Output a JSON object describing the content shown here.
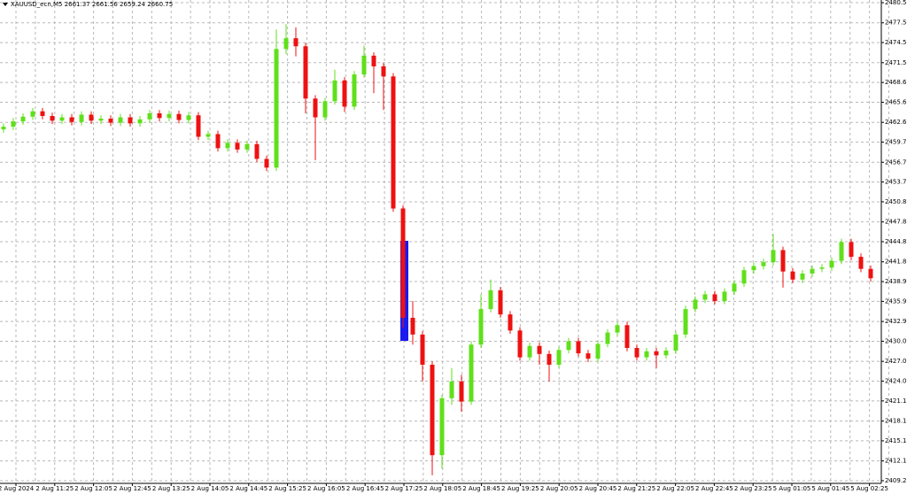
{
  "chart_data": {
    "type": "candlestick",
    "title": "XAUUSD_ecn,M5  2661.37 2661.56 2659.24 2660.75",
    "up_color": "#5fe01a",
    "down_color": "#ee1111",
    "grid": true,
    "ylim": [
      2408.8,
      2480.9
    ],
    "yticks": [
      {
        "value": 2480.5,
        "label": "2480.50"
      },
      {
        "value": 2477.5,
        "label": "2477.50"
      },
      {
        "value": 2474.55,
        "label": "2474.55"
      },
      {
        "value": 2471.55,
        "label": "2471.55"
      },
      {
        "value": 2468.6,
        "label": "2468.60"
      },
      {
        "value": 2465.65,
        "label": "2465.65"
      },
      {
        "value": 2462.65,
        "label": "2462.65"
      },
      {
        "value": 2459.7,
        "label": "2459.70"
      },
      {
        "value": 2456.7,
        "label": "2456.70"
      },
      {
        "value": 2453.75,
        "label": "2453.75"
      },
      {
        "value": 2450.8,
        "label": "2450.80"
      },
      {
        "value": 2447.8,
        "label": "2447.80"
      },
      {
        "value": 2444.85,
        "label": "2444.85"
      },
      {
        "value": 2441.85,
        "label": "2441.85"
      },
      {
        "value": 2438.9,
        "label": "2438.90"
      },
      {
        "value": 2435.95,
        "label": "2435.95"
      },
      {
        "value": 2432.95,
        "label": "2432.95"
      },
      {
        "value": 2430,
        "label": "2430.00"
      },
      {
        "value": 2427,
        "label": "2427.00"
      },
      {
        "value": 2424.05,
        "label": "2424.05"
      },
      {
        "value": 2421.1,
        "label": "2421.10"
      },
      {
        "value": 2418.1,
        "label": "2418.10"
      },
      {
        "value": 2415.15,
        "label": "2415.15"
      },
      {
        "value": 2412.15,
        "label": "2412.15"
      },
      {
        "value": 2409.2,
        "label": "2409.20"
      }
    ],
    "x_labels": [
      "2 Aug 2024",
      "2 Aug 11:25",
      "2 Aug 12:05",
      "2 Aug 12:45",
      "2 Aug 13:25",
      "2 Aug 14:05",
      "2 Aug 14:45",
      "2 Aug 15:25",
      "2 Aug 16:05",
      "2 Aug 16:45",
      "2 Aug 17:25",
      "2 Aug 18:05",
      "2 Aug 18:45",
      "2 Aug 19:25",
      "2 Aug 20:05",
      "2 Aug 20:45",
      "2 Aug 21:25",
      "2 Aug 22:05",
      "2 Aug 22:45",
      "2 Aug 23:25",
      "5 Aug 01:05",
      "5 Aug 01:45",
      "5 Aug 02:25"
    ],
    "open": [
      2461.6,
      2462.0,
      2462.8,
      2463.5,
      2464.3,
      2463.6,
      2462.9,
      2463.4,
      2462.7,
      2463.8,
      2462.9,
      2463.2,
      2462.6,
      2463.4,
      2462.5,
      2463.1,
      2464.0,
      2463.3,
      2463.9,
      2463.0,
      2463.7,
      2460.5,
      2460.9,
      2458.8,
      2459.6,
      2458.6,
      2459.4,
      2457.2,
      2455.9,
      2473.6,
      2475.2,
      2474.0,
      2466.2,
      2463.4,
      2465.8,
      2468.9,
      2465.0,
      2469.8,
      2472.6,
      2471.0,
      2469.5,
      2449.8,
      2433.5,
      2431.0,
      2426.5,
      2413.0,
      2421.5,
      2424.0,
      2421.0,
      2429.5,
      2434.8,
      2437.6,
      2434.0,
      2431.6,
      2427.6,
      2429.3,
      2428.1,
      2426.5,
      2428.7,
      2430.0,
      2428.2,
      2427.4,
      2429.6,
      2431.3,
      2432.4,
      2429.0,
      2427.6,
      2428.5,
      2427.9,
      2428.6,
      2431.0,
      2434.8,
      2436.2,
      2437.0,
      2436.0,
      2437.4,
      2438.6,
      2440.6,
      2441.2,
      2441.8,
      2443.6,
      2440.4,
      2439.2,
      2440.1,
      2440.8,
      2441.0,
      2442.0,
      2444.8,
      2442.6,
      2440.8
    ],
    "high": [
      2462.5,
      2463.3,
      2464.0,
      2464.8,
      2464.8,
      2464.1,
      2463.9,
      2463.9,
      2464.3,
      2464.3,
      2463.7,
      2463.7,
      2463.9,
      2463.9,
      2463.6,
      2464.5,
      2464.5,
      2464.4,
      2464.4,
      2464.2,
      2464.2,
      2461.4,
      2461.4,
      2460.1,
      2460.1,
      2459.9,
      2459.9,
      2457.7,
      2476.5,
      2477.3,
      2476.8,
      2474.5,
      2466.7,
      2466.3,
      2470.5,
      2469.4,
      2470.3,
      2474.1,
      2473.1,
      2471.5,
      2470.0,
      2450.3,
      2436.0,
      2431.5,
      2427.0,
      2422.0,
      2426.0,
      2425.0,
      2430.0,
      2437.0,
      2439.2,
      2438.1,
      2434.5,
      2432.1,
      2429.8,
      2429.8,
      2428.6,
      2429.2,
      2430.5,
      2430.5,
      2428.7,
      2430.1,
      2431.8,
      2432.9,
      2432.9,
      2429.5,
      2429.0,
      2429.0,
      2429.1,
      2431.5,
      2435.3,
      2436.7,
      2437.5,
      2437.5,
      2437.9,
      2439.1,
      2441.1,
      2441.7,
      2442.3,
      2446.0,
      2444.1,
      2440.9,
      2440.6,
      2441.3,
      2441.5,
      2442.5,
      2445.3,
      2445.3,
      2443.1,
      2441.3
    ],
    "low": [
      2461.1,
      2461.5,
      2462.3,
      2463.0,
      2463.1,
      2462.4,
      2462.4,
      2462.2,
      2462.2,
      2462.4,
      2462.4,
      2462.1,
      2462.1,
      2462.0,
      2462.0,
      2462.6,
      2462.8,
      2462.8,
      2462.5,
      2462.5,
      2460.0,
      2460.0,
      2458.3,
      2458.3,
      2458.1,
      2458.1,
      2456.7,
      2455.4,
      2455.4,
      2472.8,
      2472.5,
      2464.0,
      2457.0,
      2462.9,
      2465.3,
      2464.2,
      2464.5,
      2469.3,
      2467.0,
      2464.5,
      2449.3,
      2432.0,
      2429.5,
      2424.0,
      2410.0,
      2411.0,
      2420.5,
      2419.5,
      2420.5,
      2429.0,
      2434.3,
      2433.5,
      2431.1,
      2427.1,
      2427.1,
      2426.5,
      2424.0,
      2426.0,
      2428.2,
      2427.7,
      2426.9,
      2426.9,
      2429.1,
      2430.8,
      2428.5,
      2427.1,
      2427.1,
      2426.0,
      2427.4,
      2428.1,
      2430.5,
      2434.3,
      2435.7,
      2435.5,
      2435.5,
      2436.9,
      2438.1,
      2440.1,
      2440.7,
      2441.3,
      2438.0,
      2438.7,
      2438.7,
      2439.6,
      2440.3,
      2440.5,
      2441.5,
      2442.1,
      2440.3,
      2438.9
    ],
    "close": [
      2462.0,
      2462.8,
      2463.5,
      2464.3,
      2463.6,
      2462.9,
      2463.4,
      2462.7,
      2463.8,
      2462.9,
      2463.2,
      2462.6,
      2463.4,
      2462.5,
      2463.1,
      2464.0,
      2463.3,
      2463.9,
      2463.0,
      2463.7,
      2460.5,
      2460.9,
      2458.8,
      2459.6,
      2458.6,
      2459.4,
      2457.2,
      2455.9,
      2473.6,
      2475.2,
      2474.0,
      2466.2,
      2463.4,
      2465.8,
      2468.9,
      2465.0,
      2469.8,
      2472.6,
      2471.0,
      2469.5,
      2449.8,
      2433.5,
      2431.0,
      2426.5,
      2413.0,
      2421.5,
      2424.0,
      2421.0,
      2429.5,
      2434.8,
      2437.6,
      2434.0,
      2431.6,
      2427.6,
      2429.3,
      2428.1,
      2426.5,
      2428.7,
      2430.0,
      2428.2,
      2427.4,
      2429.6,
      2431.3,
      2432.4,
      2429.0,
      2427.6,
      2428.5,
      2427.9,
      2428.6,
      2431.0,
      2434.8,
      2436.2,
      2437.0,
      2436.0,
      2437.4,
      2438.6,
      2440.6,
      2441.2,
      2441.8,
      2443.6,
      2440.4,
      2439.2,
      2440.1,
      2440.8,
      2441.0,
      2442.0,
      2444.8,
      2442.6,
      2440.8,
      2439.4
    ]
  }
}
